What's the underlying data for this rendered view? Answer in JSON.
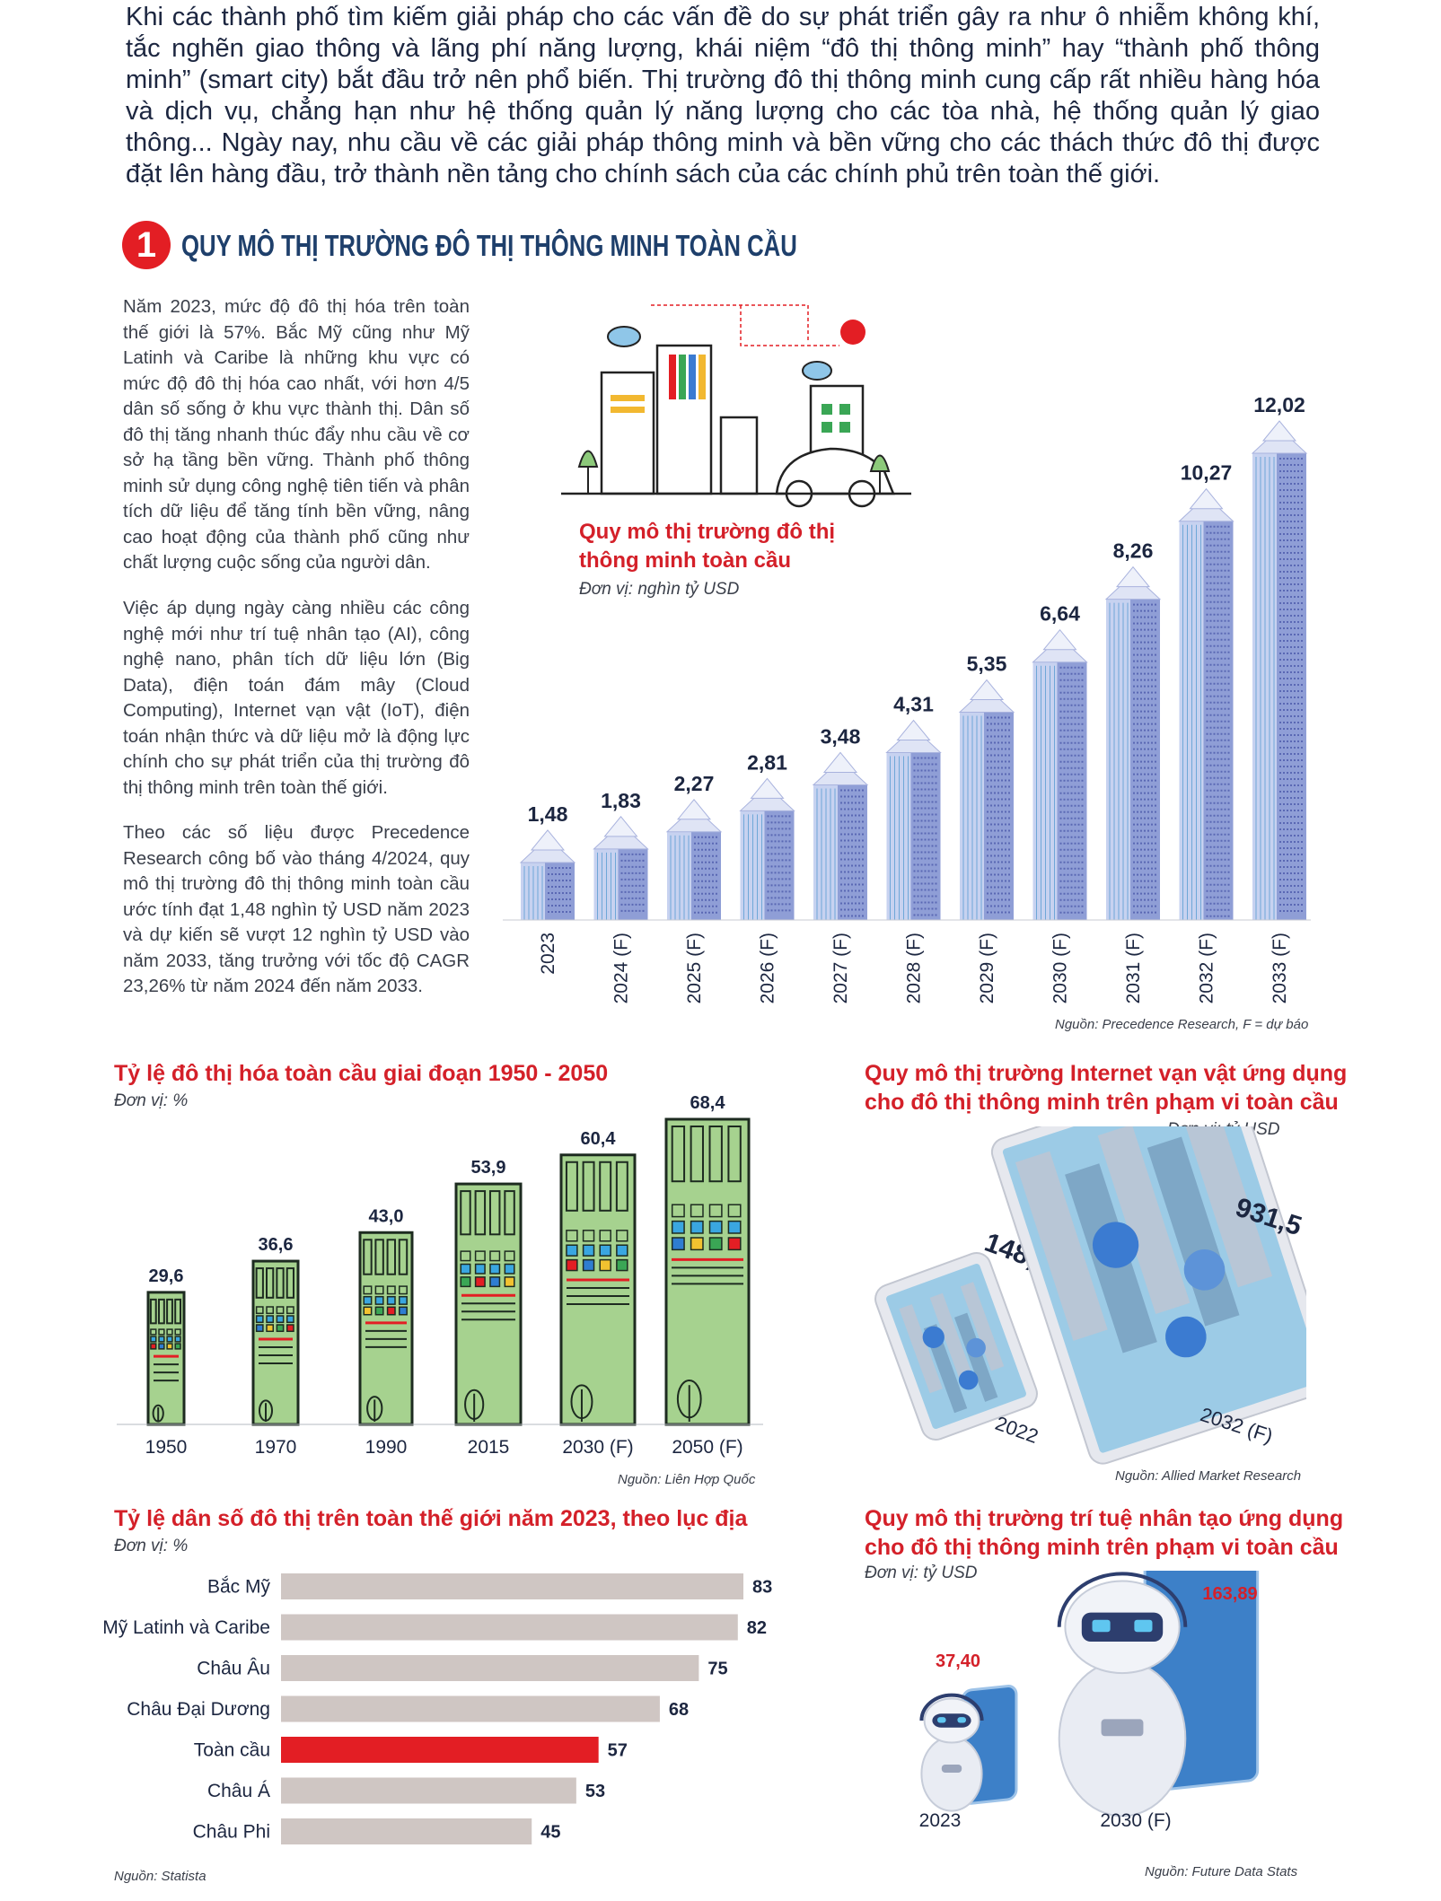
{
  "intro": "Khi các thành phố tìm kiếm giải pháp cho các vấn đề do sự phát triển gây ra như ô nhiễm không khí, tắc nghẽn giao thông và lãng phí năng lượng, khái niệm “đô thị thông minh” hay “thành phố thông minh” (smart city) bắt đầu trở nên phổ biến. Thị trường đô thị thông minh cung cấp rất nhiều hàng hóa và dịch vụ, chẳng hạn như hệ thống quản lý năng lượng cho các tòa nhà, hệ thống quản lý giao thông... Ngày nay, nhu cầu về các giải pháp thông minh và bền vững cho các thách thức đô thị được đặt lên hàng đầu, trở thành nền tảng cho chính sách của các chính phủ trên toàn thế giới.",
  "section": {
    "number": "1",
    "title": "QUY MÔ THỊ TRƯỜNG ĐÔ THỊ THÔNG MINH TOÀN CẦU"
  },
  "paragraphs": [
    "Năm 2023, mức độ đô thị hóa trên toàn thế giới là 57%. Bắc Mỹ cũng như Mỹ Latinh và Caribe là những khu vực có mức độ đô thị hóa cao nhất, với hơn 4/5 dân số sống ở khu vực thành thị. Dân số đô thị tăng nhanh thúc đẩy nhu cầu về cơ sở hạ tầng bền vững. Thành phố thông minh sử dụng công nghệ tiên tiến và phân tích dữ liệu để tăng tính bền vững, nâng cao hoạt động của thành phố cũng như chất lượng cuộc sống của người dân.",
    "Việc áp dụng ngày càng nhiều các công nghệ mới như trí tuệ nhân tạo (AI), công nghệ nano, phân tích dữ liệu lớn (Big Data), điện toán đám mây (Cloud Computing), Internet vạn vật (IoT), điện toán nhận thức và dữ liệu mở là động lực chính cho sự phát triển của thị trường đô thị thông minh trên toàn thế giới.",
    "Theo các số liệu được Precedence Research công bố vào tháng 4/2024, quy mô thị trường đô thị thông minh toàn cầu ước tính đạt 1,48 nghìn tỷ USD năm 2023 và dự kiến sẽ vượt 12 nghìn tỷ USD vào năm 2033, tăng trưởng với tốc độ CAGR 23,26% từ năm 2024 đến năm 2033."
  ],
  "chart_data": [
    {
      "type": "bar",
      "title": "Quy mô thị trường đô thị thông minh toàn cầu",
      "unit": "Đơn vị: nghìn tỷ USD",
      "categories": [
        "2023",
        "2024 (F)",
        "2025 (F)",
        "2026 (F)",
        "2027 (F)",
        "2028 (F)",
        "2029 (F)",
        "2030 (F)",
        "2031 (F)",
        "2032 (F)",
        "2033 (F)"
      ],
      "values": [
        1.48,
        1.83,
        2.27,
        2.81,
        3.48,
        4.31,
        5.35,
        6.64,
        8.26,
        10.27,
        12.02
      ],
      "labels": [
        "1,48",
        "1,83",
        "2,27",
        "2,81",
        "3,48",
        "4,31",
        "5,35",
        "6,64",
        "8,26",
        "10,27",
        "12,02"
      ],
      "source": "Nguồn: Precedence Research, F = dự báo",
      "color": "#8f9ed6"
    },
    {
      "type": "bar",
      "title": "Tỷ lệ đô thị hóa toàn cầu giai đoạn 1950 - 2050",
      "unit": "Đơn vị: %",
      "categories": [
        "1950",
        "1970",
        "1990",
        "2015",
        "2030 (F)",
        "2050 (F)"
      ],
      "values": [
        29.6,
        36.6,
        43.0,
        53.9,
        60.4,
        68.4
      ],
      "labels": [
        "29,6",
        "36,6",
        "43,0",
        "53,9",
        "60,4",
        "68,4"
      ],
      "source": "Nguồn: Liên Hợp Quốc",
      "color": "#a6d28f"
    },
    {
      "type": "bar",
      "title_lines": [
        "Quy mô thị trường Internet vạn vật ứng dụng",
        "cho đô thị thông minh trên phạm vi toàn cầu"
      ],
      "unit": "Đơn vị: tỷ USD",
      "categories": [
        "2022",
        "2032 (F)"
      ],
      "values": [
        148.6,
        931.5
      ],
      "labels": [
        "148,6",
        "931,5"
      ],
      "source": "Nguồn: Allied Market Research"
    },
    {
      "type": "bar",
      "orientation": "horizontal",
      "title": "Tỷ lệ dân số đô thị trên toàn thế giới năm 2023, theo lục địa",
      "unit": "Đơn vị: %",
      "categories": [
        "Bắc Mỹ",
        "Mỹ Latinh và Caribe",
        "Châu Âu",
        "Châu Đại Dương",
        "Toàn cầu",
        "Châu Á",
        "Châu Phi"
      ],
      "values": [
        83,
        82,
        75,
        68,
        57,
        53,
        45
      ],
      "highlight": "Toàn cầu",
      "source": "Nguồn: Statista",
      "color": "#cfc6c3",
      "highlight_color": "#e31e24"
    },
    {
      "type": "bar",
      "title_lines": [
        "Quy mô thị trường trí tuệ nhân tạo ứng dụng",
        "cho đô thị thông minh trên phạm vi toàn cầu"
      ],
      "unit": "Đơn vị: tỷ USD",
      "categories": [
        "2023",
        "2030 (F)"
      ],
      "values": [
        37.4,
        163.89
      ],
      "labels": [
        "37,40",
        "163,89"
      ],
      "source": "Nguồn: Future Data Stats"
    }
  ]
}
